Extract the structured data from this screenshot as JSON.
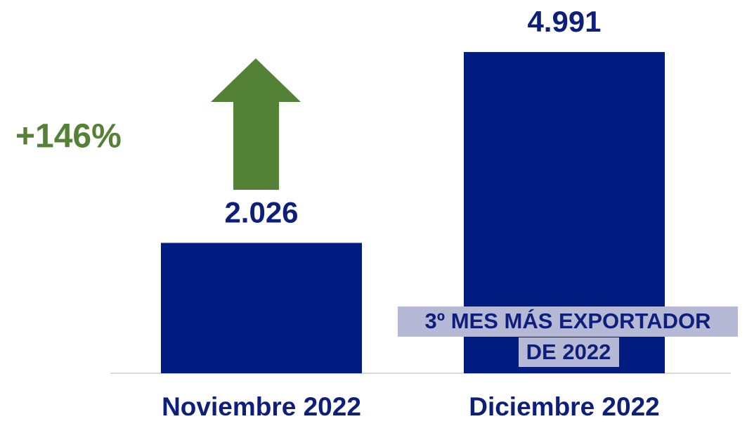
{
  "chart_data": {
    "type": "bar",
    "categories": [
      "Noviembre 2022",
      "Diciembre 2022"
    ],
    "values": [
      2026,
      4991
    ],
    "value_labels": [
      "2.026",
      "4.991"
    ],
    "color": "#001c80",
    "ylim": [
      0,
      5000
    ],
    "annotations": [
      "+146%",
      "3º MES MÁS EXPORTADOR",
      "DE 2022"
    ],
    "annotation_color": "#538135"
  }
}
